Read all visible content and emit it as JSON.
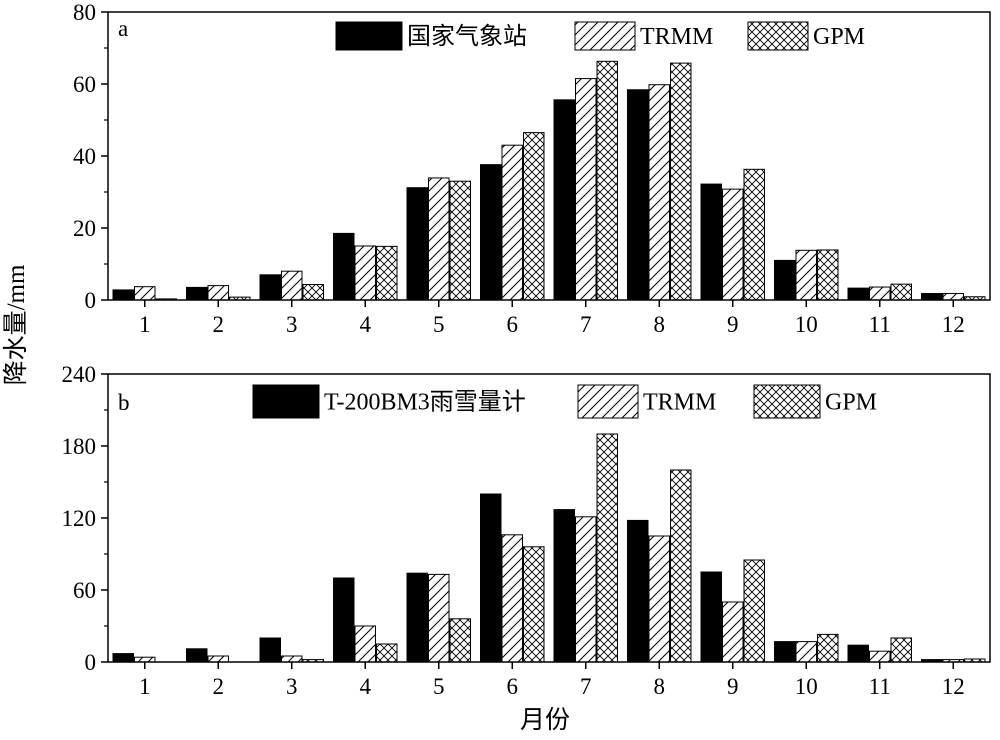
{
  "ylabel": "降水量/mm",
  "xlabel": "月份",
  "chart_data": [
    {
      "type": "bar",
      "panel_label": "a",
      "categories": [
        "1",
        "2",
        "3",
        "4",
        "5",
        "6",
        "7",
        "8",
        "9",
        "10",
        "11",
        "12"
      ],
      "ylim": [
        0,
        80
      ],
      "yticks": [
        "0",
        "20",
        "40",
        "60",
        "80"
      ],
      "legend_position": "top",
      "series": [
        {
          "name": "国家气象站",
          "pattern": "solid",
          "values": [
            2.8,
            3.5,
            7.0,
            18.5,
            31.2,
            37.6,
            55.6,
            58.4,
            32.2,
            11.0,
            3.3,
            1.8
          ]
        },
        {
          "name": "TRMM",
          "pattern": "hatch",
          "values": [
            3.7,
            4.0,
            8.0,
            15.0,
            33.9,
            43.0,
            61.5,
            59.8,
            30.8,
            13.8,
            3.6,
            1.8
          ]
        },
        {
          "name": "GPM",
          "pattern": "crosshatch",
          "values": [
            0.3,
            0.8,
            4.3,
            14.9,
            33.0,
            46.5,
            66.3,
            65.8,
            36.3,
            13.9,
            4.4,
            0.9
          ]
        }
      ]
    },
    {
      "type": "bar",
      "panel_label": "b",
      "categories": [
        "1",
        "2",
        "3",
        "4",
        "5",
        "6",
        "7",
        "8",
        "9",
        "10",
        "11",
        "12"
      ],
      "ylim": [
        0,
        240
      ],
      "yticks": [
        "0",
        "60",
        "120",
        "180",
        "240"
      ],
      "legend_position": "top",
      "series": [
        {
          "name": "T-200BM3雨雪量计",
          "pattern": "solid",
          "values": [
            7,
            11,
            20,
            70,
            74,
            140,
            127,
            118,
            75,
            17,
            14,
            2
          ]
        },
        {
          "name": "TRMM",
          "pattern": "hatch",
          "values": [
            4,
            5,
            5,
            30,
            73,
            106,
            121,
            105,
            50,
            17,
            9,
            2
          ]
        },
        {
          "name": "GPM",
          "pattern": "crosshatch",
          "values": [
            0,
            0,
            2,
            15,
            36,
            96,
            190,
            160,
            85,
            23,
            20,
            2.5
          ]
        }
      ]
    }
  ]
}
